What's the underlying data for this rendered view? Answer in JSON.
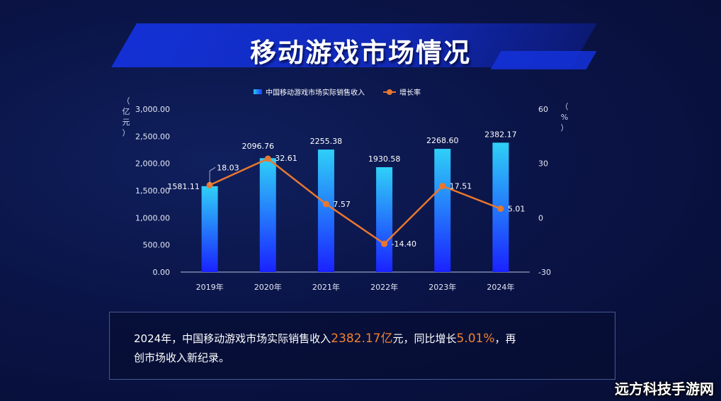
{
  "page": {
    "title": "移动游戏市场情况",
    "watermark": "远方科技手游网"
  },
  "y_left_unit": [
    "（",
    "亿",
    "元",
    "）"
  ],
  "y_right_unit": [
    "（",
    "%",
    "）"
  ],
  "summary": {
    "part1": "2024年，中国移动游戏市场实际销售收入",
    "value": "2382.17亿",
    "part2": "元，同比增长",
    "growth": "5.01%",
    "part3": "，再",
    "line2": "创市场收入新纪录。"
  },
  "chart_data": {
    "type": "bar",
    "categories": [
      "2019年",
      "2020年",
      "2021年",
      "2022年",
      "2023年",
      "2024年"
    ],
    "series": [
      {
        "name": "中国移动游戏市场实际销售收入",
        "type": "bar",
        "axis": "left",
        "values": [
          1581.11,
          2096.76,
          2255.38,
          1930.58,
          2268.6,
          2382.17
        ],
        "labels": [
          "1581.11",
          "2096.76",
          "2255.38",
          "1930.58",
          "2268.60",
          "2382.17"
        ]
      },
      {
        "name": "增长率",
        "type": "line",
        "axis": "right",
        "values": [
          18.03,
          32.61,
          7.57,
          -14.4,
          17.51,
          5.01
        ],
        "labels": [
          "18.03",
          "32.61",
          "7.57",
          "-14.40",
          "17.51",
          "5.01"
        ]
      }
    ],
    "ylim_left": [
      0,
      3000
    ],
    "yticks_left": [
      "0.00",
      "500.00",
      "1,000.00",
      "1,500.00",
      "2,000.00",
      "2,500.00",
      "3,000.00"
    ],
    "ylim_right": [
      -30,
      60
    ],
    "yticks_right": [
      "-30",
      "0",
      "30",
      "60"
    ],
    "legend_position": "top",
    "colors": {
      "bar_top": "#2fd0f7",
      "bar_bottom": "#1a22ff",
      "line": "#e8772e"
    }
  }
}
